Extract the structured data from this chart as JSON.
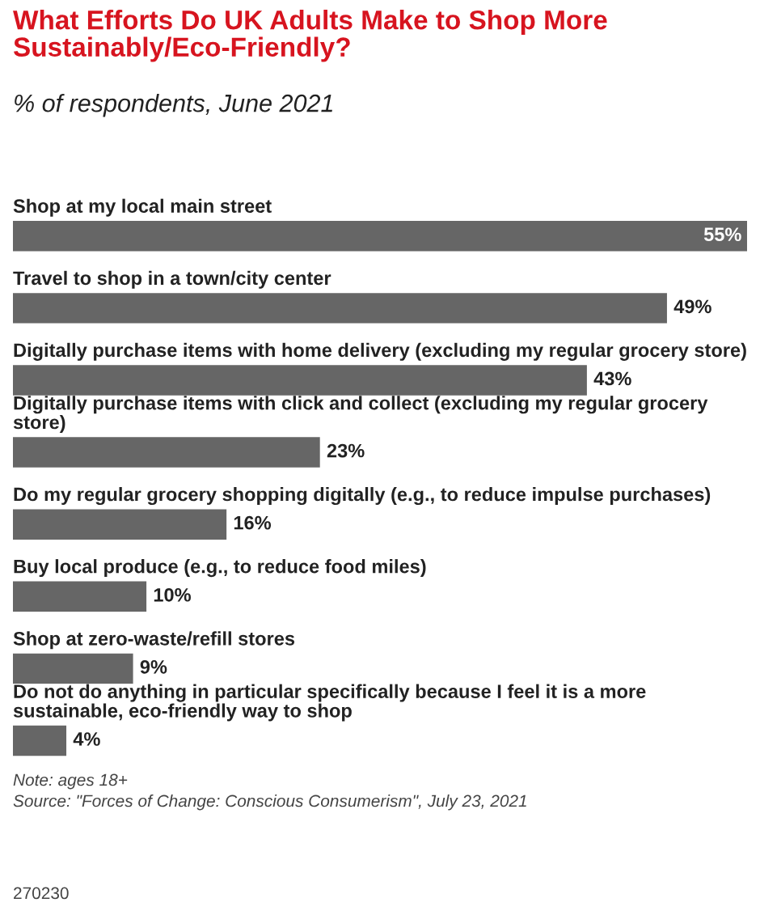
{
  "chart_data": {
    "type": "bar",
    "orientation": "horizontal",
    "title": "What Efforts Do UK Adults Make to Shop More Sustainably/Eco-Friendly?",
    "subtitle": "% of respondents, June 2021",
    "categories": [
      "Shop at my local main street",
      "Travel to shop in a town/city center",
      "Digitally purchase items with home delivery (excluding my regular grocery store)",
      "Digitally purchase items with click and collect (excluding my regular grocery store)",
      "Do my regular grocery shopping digitally (e.g., to reduce impulse purchases)",
      "Buy local produce (e.g., to reduce food miles)",
      "Shop at zero-waste/refill stores",
      "Do not do anything in particular specifically because I feel it is a more sustainable, eco-friendly way to shop"
    ],
    "values": [
      55,
      49,
      43,
      23,
      16,
      10,
      9,
      4
    ],
    "value_labels": [
      "55%",
      "49%",
      "43%",
      "23%",
      "16%",
      "10%",
      "9%",
      "4%"
    ],
    "color": "#666666",
    "annotations": [
      "Note: ages 18+",
      "Source: \"Forces of Change: Conscious Consumerism\", July 23, 2021",
      "270230"
    ]
  }
}
